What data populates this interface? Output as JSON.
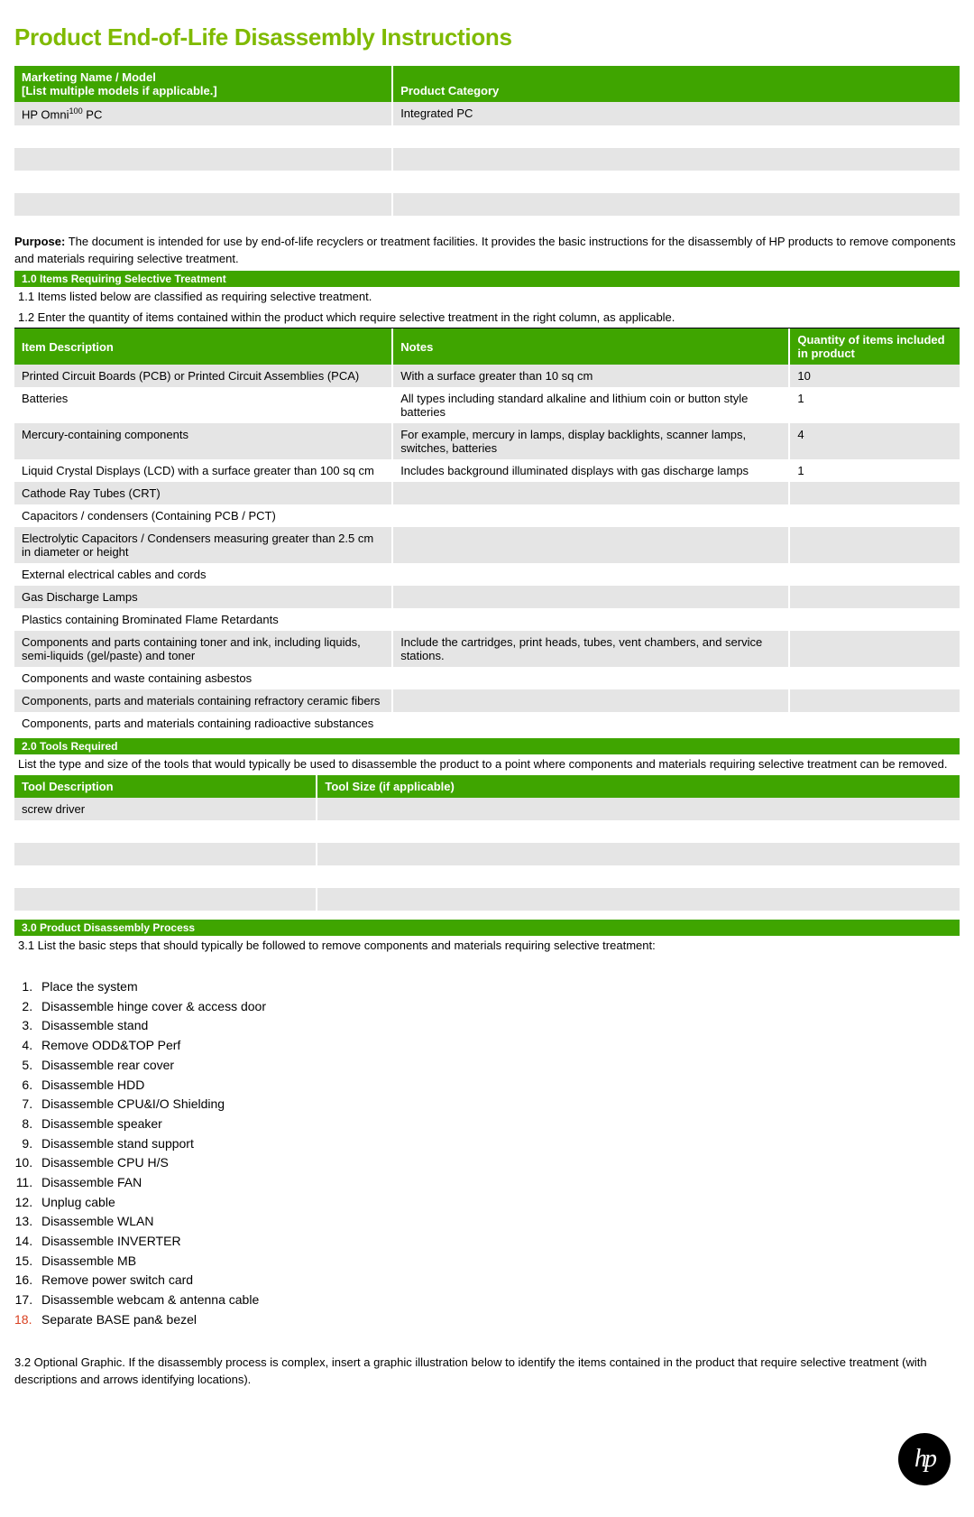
{
  "title": "Product End-of-Life Disassembly Instructions",
  "colors": {
    "brand": "#7fba00",
    "headerBg": "#3fa500",
    "altRow": "#e5e5e5"
  },
  "headerTable": {
    "col1Header": "Marketing Name / Model\n[List multiple models if applicable.]",
    "col2Header": "Product Category",
    "rows": [
      {
        "model_html": "HP Omni<sup>100</sup> PC",
        "category": "Integrated PC"
      },
      {
        "model_html": "",
        "category": ""
      },
      {
        "model_html": "",
        "category": ""
      },
      {
        "model_html": "",
        "category": ""
      },
      {
        "model_html": "",
        "category": ""
      }
    ]
  },
  "purposeLabel": "Purpose:",
  "purposeText": "The document is intended for use by end-of-life recyclers or treatment facilities. It provides the basic instructions for the disassembly of HP products to remove components and materials requiring selective treatment.",
  "section1": {
    "bar": "1.0 Items Requiring Selective Treatment",
    "note1": "1.1 Items listed below are classified as requiring selective treatment.",
    "note2": "1.2 Enter the quantity of items contained within the product which require selective treatment in the right column, as applicable.",
    "headers": [
      "Item Description",
      "Notes",
      "Quantity of items included in product"
    ],
    "colWidths": [
      "40%",
      "42%",
      "18%"
    ],
    "rows": [
      [
        "Printed Circuit Boards (PCB) or Printed Circuit Assemblies (PCA)",
        "With a surface greater than 10 sq cm",
        "10"
      ],
      [
        "Batteries",
        "All types including standard alkaline and lithium coin or button style batteries",
        "1"
      ],
      [
        "Mercury-containing components",
        "For example, mercury in lamps, display backlights, scanner lamps, switches, batteries",
        "4"
      ],
      [
        "Liquid Crystal Displays (LCD) with a surface greater than 100 sq cm",
        "Includes background illuminated displays with gas discharge lamps",
        "1"
      ],
      [
        "Cathode Ray Tubes (CRT)",
        "",
        ""
      ],
      [
        "Capacitors / condensers (Containing PCB / PCT)",
        "",
        ""
      ],
      [
        "Electrolytic Capacitors / Condensers measuring greater than 2.5 cm in diameter or height",
        "",
        ""
      ],
      [
        "External electrical cables and cords",
        "",
        ""
      ],
      [
        "Gas Discharge Lamps",
        "",
        ""
      ],
      [
        "Plastics containing Brominated Flame Retardants",
        "",
        ""
      ],
      [
        "Components and parts containing toner and ink, including liquids, semi-liquids (gel/paste) and toner",
        "Include the cartridges, print heads, tubes, vent chambers, and service stations.",
        ""
      ],
      [
        "Components and waste containing asbestos",
        "",
        ""
      ],
      [
        "Components, parts and materials containing refractory ceramic fibers",
        "",
        ""
      ],
      [
        "Components, parts and materials containing radioactive substances",
        "",
        ""
      ]
    ]
  },
  "section2": {
    "bar": "2.0 Tools Required",
    "note": "List the type and size of the tools that would typically be used to disassemble the product to a point where components and materials requiring selective treatment can be removed.",
    "headers": [
      "Tool Description",
      "Tool Size (if applicable)"
    ],
    "colWidths": [
      "32%",
      "68%"
    ],
    "rows": [
      [
        "screw driver",
        ""
      ],
      [
        "",
        ""
      ],
      [
        "",
        ""
      ],
      [
        "",
        ""
      ],
      [
        "",
        ""
      ]
    ]
  },
  "section3": {
    "bar": "3.0 Product Disassembly Process",
    "note31": "3.1 List the basic steps that should typically be followed to remove components and materials requiring selective treatment:",
    "steps": [
      "Place the system",
      "Disassemble hinge cover & access door",
      "Disassemble stand",
      "Remove ODD&TOP Perf",
      "Disassemble rear cover",
      "Disassemble HDD",
      " Disassemble CPU&I/O Shielding",
      " Disassemble speaker",
      " Disassemble stand support",
      "Disassemble CPU H/S",
      "Disassemble FAN",
      "Unplug cable",
      "Disassemble WLAN",
      "Disassemble INVERTER",
      "Disassemble MB",
      "Remove power switch card",
      "Disassemble webcam & antenna cable",
      "Separate BASE pan& bezel"
    ],
    "redStepIndex": 17,
    "note32": "3.2 Optional Graphic.  If the disassembly process is complex, insert a graphic illustration below to identify the items contained in the product that require selective treatment (with descriptions and arrows identifying locations)."
  },
  "logoText": "hp"
}
